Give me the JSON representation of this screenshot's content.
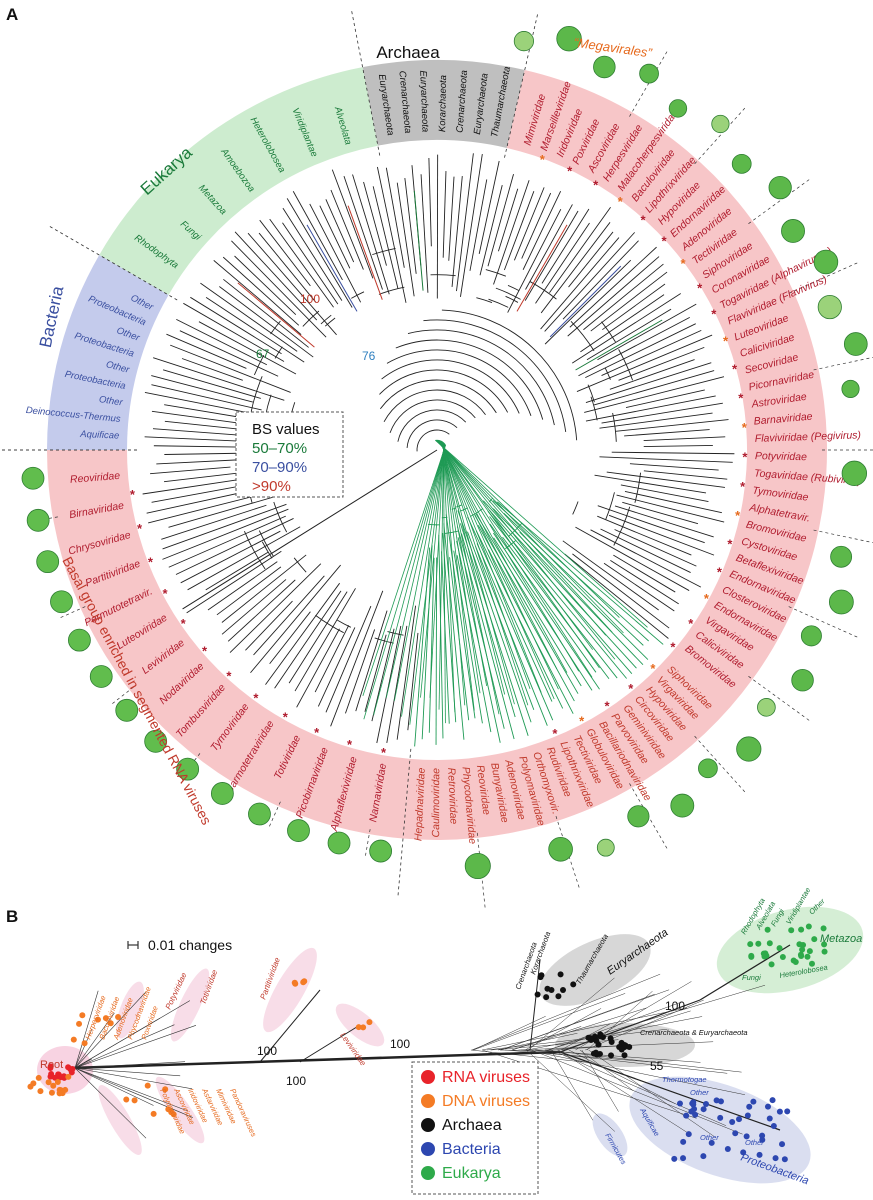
{
  "panel_a": {
    "label": "A",
    "domains": [
      {
        "key": "archaea",
        "label": "Archaea",
        "color": "#111111",
        "fill": "#bfbfbf",
        "a0": -101,
        "a1": -77
      },
      {
        "key": "eukarya",
        "label": "Eukarya",
        "color": "#1a7a3a",
        "fill": "#cdeccf",
        "a0": -150,
        "a1": -101
      },
      {
        "key": "bacteria",
        "label": "Bacteria",
        "color": "#3a4fa0",
        "fill": "#c4cbec",
        "a0": -180,
        "a1": -150
      },
      {
        "key": "viruses_top",
        "label": "",
        "color": "#c0392b",
        "fill": "#f7c6c8",
        "a0": -77,
        "a1": 95
      },
      {
        "key": "viruses_basal",
        "label": "",
        "color": "#c0392b",
        "fill": "#f7c6c8",
        "a0": 95,
        "a1": 180
      }
    ],
    "megavirales_label": "“Megavirales”",
    "basal_group_label": "Basal group enriched in segmented RNA viruses",
    "archaea_leaves": [
      "Euryarchaeota",
      "Crenarchaeota",
      "Euryarchaeota",
      "Korarchaeota",
      "Crenarchaeota",
      "Euryarchaeota",
      "Thaumarchaeota"
    ],
    "eukarya_leaves": [
      "Rhodophyta",
      "Fungi",
      "Metazoa",
      "Amoebozoa",
      "Heterolobosea",
      "Viridiplantae",
      "Alveolata"
    ],
    "bacteria_leaves": [
      "Aquificae",
      "Deinococcus-Thermus",
      "Other",
      "Proteobacteria",
      "Other",
      "Proteobacteria",
      "Other",
      "Proteobacteria",
      "Other"
    ],
    "virus_leaves_top": [
      "Mimiviridae",
      "Marseilleviridae",
      "Iridoviridae",
      "Poxviridae",
      "Ascoviridae",
      "Herpesviridae",
      "Malacoherpesviridae",
      "Baculoviridae",
      "Lipothrixviridae",
      "Hypoviridae",
      "Endornaviridae",
      "Adenoviridae",
      "Tectiviridae",
      "Siphoviridae",
      "Coronaviridae",
      "Togaviridae (Alphaviruses)",
      "Flaviviridae (Flavivirus)",
      "Luteoviridae",
      "Caliciviridae",
      "Secoviridae",
      "Picornaviridae",
      "Astroviridae",
      "Barnaviridae",
      "Flaviviridae (Pegivirus)",
      "Potyviridae",
      "Togaviridae (Rubivirus)",
      "Tymoviridae",
      "Alphatetravir.",
      "Bromoviridae",
      "Cystoviridae",
      "Betaflexiviridae",
      "Endornaviridae",
      "Closteroviridae",
      "Endornaviridae",
      "Virgaviridae",
      "Caliciviridae",
      "Bromoviridae"
    ],
    "virus_leaves_bottom": [
      "Siphoviridae",
      "Virgaviridae",
      "Hypoviridae",
      "Circoviridae",
      "Geminiviridae",
      "Parvoviridae",
      "Bacillariodnaviridae",
      "Globuloviridae",
      "Tectiviridae",
      "Lipothrixviridae",
      "Rudiviridae",
      "Orthomyxovir.",
      "Polyomaviridae",
      "Adenoviridae",
      "Bunyaviridae",
      "Reoviridae",
      "Phycodnaviridae",
      "Retroviridae",
      "Caulimoviridae",
      "Hepadnaviridae"
    ],
    "virus_leaves_basal": [
      "Narnaviridae",
      "Alphaflexiviridae",
      "Picobirnaviridae",
      "Totiviridae",
      "Carmotetraviridae",
      "Tymoviridae",
      "Tombusviridae",
      "Nodaviridae",
      "Leviviridae",
      "Luteoviridae",
      "Permutotetravir.",
      "Partitiviridae",
      "Chrysoviridae",
      "Birnaviridae",
      "Reoviridae"
    ],
    "bootstrap_labels": [
      {
        "text": "100",
        "color": "#c0392b"
      },
      {
        "text": "67",
        "color": "#1a7a3a"
      },
      {
        "text": "76",
        "color": "#2e7fbf"
      }
    ],
    "legend": {
      "title": "BS values",
      "items": [
        {
          "text": "50–70%",
          "color": "#1a7a3a"
        },
        {
          "text": "70–90%",
          "color": "#3a4fa0"
        },
        {
          "text": ">90%",
          "color": "#c0392b"
        }
      ]
    }
  },
  "panel_b": {
    "label": "B",
    "scale_label": "0.01 changes",
    "root_label": "Root",
    "bootstrap_labels": [
      "100",
      "100",
      "100",
      "100",
      "55"
    ],
    "rna_clades": [
      "Partitiviridae",
      "Leviviridae",
      "Totiviridae",
      "Potyviridae"
    ],
    "dna_clades": [
      "Herpesviridae",
      "Baculoviridae",
      "Adenoviridae",
      "Phycodnaviridae",
      "Poxviridae",
      "Polydnaviridae",
      "Ascoviridae",
      "Iridoviridae",
      "Asfarviridae",
      "Mimiviridae",
      "Pandoraviruses"
    ],
    "archaea_clades": [
      "Crenarchaeota",
      "Korarchaeota",
      "Thaumarchaeota",
      "Euryarchaeota",
      "Crenarchaeota & Euryarchaeota"
    ],
    "eukarya_clades": [
      "Rhodophyta",
      "Alveolata",
      "Fungi",
      "Viridiplantae",
      "Other",
      "Metazoa",
      "Heterolobosea",
      "Fungi"
    ],
    "bacteria_clades": [
      "Thermotogae",
      "Other",
      "Aquificae",
      "Firmicutes",
      "Other",
      "Other",
      "Proteobacteria"
    ],
    "legend": [
      {
        "text": "RNA viruses",
        "color": "#e8232a"
      },
      {
        "text": "DNA viruses",
        "color": "#f47b25"
      },
      {
        "text": "Archaea",
        "color": "#111111"
      },
      {
        "text": "Bacteria",
        "color": "#2d47b0"
      },
      {
        "text": "Eukarya",
        "color": "#2eaa4a"
      }
    ]
  }
}
